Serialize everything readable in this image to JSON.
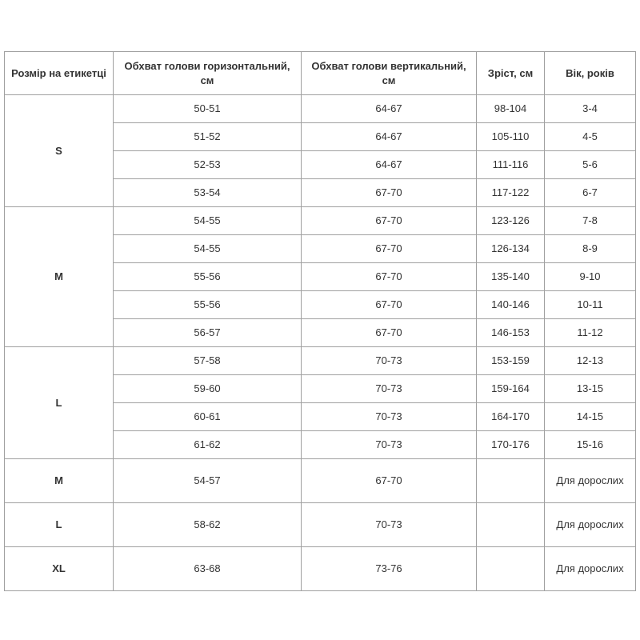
{
  "headers": [
    "Розмір на етикетці",
    "Обхват голови горизонтальний, см",
    "Обхват голови вертикальний, см",
    "Зріст, см",
    "Вік, років"
  ],
  "groups": [
    {
      "size": "S",
      "rows": [
        [
          "50-51",
          "64-67",
          "98-104",
          "3-4"
        ],
        [
          "51-52",
          "64-67",
          "105-110",
          "4-5"
        ],
        [
          "52-53",
          "64-67",
          "111-116",
          "5-6"
        ],
        [
          "53-54",
          "67-70",
          "117-122",
          "6-7"
        ]
      ]
    },
    {
      "size": "M",
      "rows": [
        [
          "54-55",
          "67-70",
          "123-126",
          "7-8"
        ],
        [
          "54-55",
          "67-70",
          "126-134",
          "8-9"
        ],
        [
          "55-56",
          "67-70",
          "135-140",
          "9-10"
        ],
        [
          "55-56",
          "67-70",
          "140-146",
          "10-11"
        ],
        [
          "56-57",
          "67-70",
          "146-153",
          "11-12"
        ]
      ]
    },
    {
      "size": "L",
      "rows": [
        [
          "57-58",
          "70-73",
          "153-159",
          "12-13"
        ],
        [
          "59-60",
          "70-73",
          "159-164",
          "13-15"
        ],
        [
          "60-61",
          "70-73",
          "164-170",
          "14-15"
        ],
        [
          "61-62",
          "70-73",
          "170-176",
          "15-16"
        ]
      ]
    },
    {
      "size": "M",
      "adult": true,
      "rows": [
        [
          "54-57",
          "67-70",
          "",
          "Для дорослих"
        ]
      ]
    },
    {
      "size": "L",
      "adult": true,
      "rows": [
        [
          "58-62",
          "70-73",
          "",
          "Для дорослих"
        ]
      ]
    },
    {
      "size": "XL",
      "adult": true,
      "rows": [
        [
          "63-68",
          "73-76",
          "",
          "Для дорослих"
        ]
      ]
    }
  ]
}
